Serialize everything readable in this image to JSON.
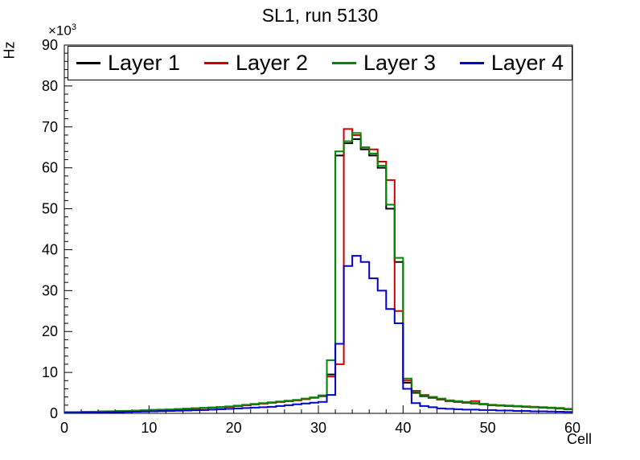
{
  "chart_data": {
    "type": "step-histogram",
    "title": "SL1, run 5130",
    "xlabel": "Cell",
    "ylabel": "Hz",
    "y_multiplier_base": "×10",
    "y_multiplier_exp": "3",
    "values_scale": "units of 10^3 Hz",
    "xlim": [
      0,
      60
    ],
    "ylim": [
      0,
      90
    ],
    "x_ticks": [
      0,
      10,
      20,
      30,
      40,
      50,
      60
    ],
    "y_ticks": [
      0,
      10,
      20,
      30,
      40,
      50,
      60,
      70,
      80,
      90
    ],
    "bin_width": 1,
    "grid": false,
    "legend_position": "top",
    "series": [
      {
        "name": "Layer 1",
        "color": "#000000",
        "values": [
          0.3,
          0.3,
          0.35,
          0.4,
          0.45,
          0.5,
          0.55,
          0.6,
          0.65,
          0.7,
          0.8,
          0.85,
          0.9,
          1.0,
          1.1,
          1.2,
          1.3,
          1.4,
          1.5,
          1.6,
          1.8,
          2.0,
          2.2,
          2.4,
          2.6,
          2.8,
          3.0,
          3.2,
          3.5,
          3.8,
          4.2,
          9.5,
          63,
          66,
          67,
          64.5,
          63,
          60,
          50,
          37,
          7.5,
          5.0,
          4.2,
          3.8,
          3.4,
          3.0,
          2.8,
          2.6,
          2.4,
          2.2,
          2.0,
          1.9,
          1.8,
          1.7,
          1.6,
          1.5,
          1.4,
          1.3,
          1.2,
          1.0
        ]
      },
      {
        "name": "Layer 2",
        "color": "#cc0000",
        "values": [
          0.3,
          0.3,
          0.35,
          0.4,
          0.45,
          0.5,
          0.55,
          0.6,
          0.65,
          0.7,
          0.8,
          0.85,
          0.9,
          1.0,
          1.1,
          1.2,
          1.3,
          1.4,
          1.5,
          1.6,
          1.8,
          2.0,
          2.2,
          2.4,
          2.6,
          2.8,
          3.0,
          3.2,
          3.5,
          3.8,
          4.3,
          9.0,
          12,
          69.5,
          68,
          65,
          64.5,
          61.5,
          57,
          25,
          8.0,
          5.5,
          4.5,
          4.0,
          3.5,
          3.1,
          2.9,
          2.7,
          3.0,
          2.3,
          2.1,
          2.0,
          1.9,
          1.8,
          1.7,
          1.6,
          1.5,
          1.4,
          1.3,
          1.1
        ]
      },
      {
        "name": "Layer 3",
        "color": "#008800",
        "values": [
          0.32,
          0.32,
          0.37,
          0.42,
          0.47,
          0.52,
          0.57,
          0.62,
          0.67,
          0.75,
          0.85,
          0.9,
          0.95,
          1.05,
          1.15,
          1.25,
          1.35,
          1.45,
          1.55,
          1.7,
          1.9,
          2.1,
          2.3,
          2.5,
          2.7,
          2.9,
          3.1,
          3.3,
          3.6,
          3.9,
          4.4,
          13,
          64,
          66.5,
          68.5,
          65,
          63.5,
          60.5,
          51,
          38,
          8.5,
          5.2,
          4.4,
          4.0,
          3.6,
          3.2,
          3.0,
          2.8,
          2.5,
          2.3,
          2.1,
          2.0,
          1.9,
          1.8,
          1.7,
          1.6,
          1.5,
          1.4,
          1.3,
          1.1
        ]
      },
      {
        "name": "Layer 4",
        "color": "#0000cc",
        "values": [
          0.15,
          0.15,
          0.2,
          0.2,
          0.25,
          0.3,
          0.3,
          0.35,
          0.4,
          0.45,
          0.5,
          0.55,
          0.6,
          0.65,
          0.7,
          0.75,
          0.8,
          0.9,
          1.0,
          1.1,
          1.2,
          1.3,
          1.4,
          1.5,
          1.6,
          1.8,
          2.0,
          2.2,
          2.4,
          2.6,
          2.8,
          4.5,
          17,
          36,
          38.5,
          37,
          33,
          30,
          25.5,
          22,
          6.0,
          2.5,
          1.8,
          1.5,
          1.2,
          1.1,
          1.0,
          0.9,
          0.9,
          0.8,
          0.8,
          0.7,
          0.7,
          0.6,
          0.6,
          0.5,
          0.5,
          0.45,
          0.4,
          0.35
        ]
      }
    ]
  }
}
